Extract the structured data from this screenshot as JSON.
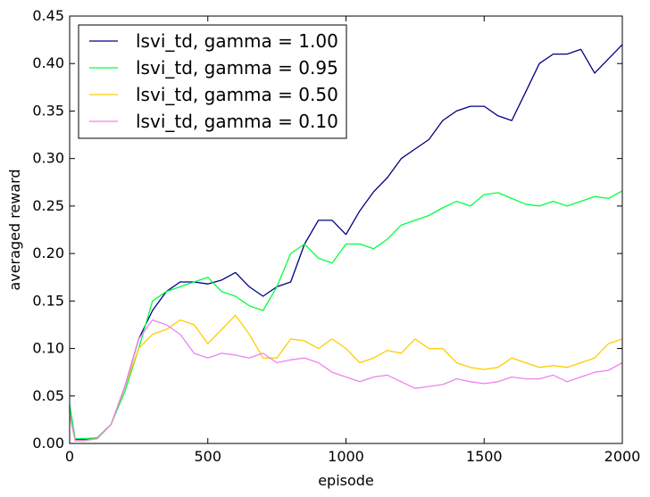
{
  "chart_data": {
    "type": "line",
    "title": "",
    "xlabel": "episode",
    "ylabel": "averaged reward",
    "xlim": [
      0,
      2000
    ],
    "ylim": [
      0.0,
      0.45
    ],
    "xticks": [
      "0",
      "500",
      "1000",
      "1500",
      "2000"
    ],
    "yticks": [
      "0.00",
      "0.05",
      "0.10",
      "0.15",
      "0.20",
      "0.25",
      "0.30",
      "0.35",
      "0.40",
      "0.45"
    ],
    "grid": false,
    "legend_position": "top-left",
    "series": [
      {
        "name": "lsvi_td, gamma = 1.00",
        "color": "#000080",
        "x": [
          0,
          20,
          50,
          100,
          150,
          200,
          250,
          300,
          350,
          400,
          450,
          500,
          550,
          600,
          650,
          700,
          750,
          800,
          850,
          900,
          950,
          1000,
          1050,
          1100,
          1150,
          1200,
          1250,
          1300,
          1350,
          1400,
          1450,
          1500,
          1550,
          1600,
          1650,
          1700,
          1750,
          1800,
          1850,
          1900,
          1950,
          2000
        ],
        "y": [
          0.04,
          0.004,
          0.004,
          0.006,
          0.02,
          0.06,
          0.11,
          0.14,
          0.16,
          0.17,
          0.17,
          0.168,
          0.172,
          0.18,
          0.165,
          0.155,
          0.165,
          0.17,
          0.21,
          0.235,
          0.235,
          0.22,
          0.245,
          0.265,
          0.28,
          0.3,
          0.31,
          0.32,
          0.34,
          0.35,
          0.355,
          0.355,
          0.345,
          0.34,
          0.37,
          0.4,
          0.41,
          0.41,
          0.415,
          0.39,
          0.405,
          0.42
        ]
      },
      {
        "name": "lsvi_td, gamma = 0.95",
        "color": "#00ff40",
        "x": [
          0,
          20,
          50,
          100,
          150,
          200,
          250,
          300,
          350,
          400,
          450,
          500,
          550,
          600,
          650,
          700,
          750,
          800,
          850,
          900,
          950,
          1000,
          1050,
          1100,
          1150,
          1200,
          1250,
          1300,
          1350,
          1400,
          1450,
          1500,
          1550,
          1600,
          1650,
          1700,
          1750,
          1800,
          1850,
          1900,
          1950,
          2000
        ],
        "y": [
          0.04,
          0.005,
          0.005,
          0.006,
          0.02,
          0.055,
          0.1,
          0.15,
          0.16,
          0.165,
          0.17,
          0.175,
          0.16,
          0.155,
          0.145,
          0.14,
          0.165,
          0.2,
          0.21,
          0.195,
          0.19,
          0.21,
          0.21,
          0.205,
          0.215,
          0.23,
          0.235,
          0.24,
          0.248,
          0.255,
          0.25,
          0.262,
          0.264,
          0.258,
          0.252,
          0.25,
          0.255,
          0.25,
          0.255,
          0.26,
          0.258,
          0.266
        ]
      },
      {
        "name": "lsvi_td, gamma = 0.50",
        "color": "#ffcc00",
        "x": [
          0,
          20,
          50,
          100,
          150,
          200,
          250,
          300,
          350,
          400,
          450,
          500,
          550,
          600,
          650,
          700,
          750,
          800,
          850,
          900,
          950,
          1000,
          1050,
          1100,
          1150,
          1200,
          1250,
          1300,
          1350,
          1400,
          1450,
          1500,
          1550,
          1600,
          1650,
          1700,
          1750,
          1800,
          1850,
          1900,
          1950,
          2000
        ],
        "y": [
          0.03,
          0.003,
          0.003,
          0.005,
          0.02,
          0.06,
          0.1,
          0.115,
          0.12,
          0.13,
          0.125,
          0.105,
          0.12,
          0.135,
          0.115,
          0.09,
          0.09,
          0.11,
          0.108,
          0.1,
          0.11,
          0.1,
          0.085,
          0.09,
          0.098,
          0.095,
          0.11,
          0.1,
          0.1,
          0.085,
          0.08,
          0.078,
          0.08,
          0.09,
          0.085,
          0.08,
          0.082,
          0.08,
          0.085,
          0.09,
          0.105,
          0.11
        ]
      },
      {
        "name": "lsvi_td, gamma = 0.10",
        "color": "#ee82ee",
        "x": [
          0,
          20,
          50,
          100,
          150,
          200,
          250,
          300,
          350,
          400,
          450,
          500,
          550,
          600,
          650,
          700,
          750,
          800,
          850,
          900,
          950,
          1000,
          1050,
          1100,
          1150,
          1200,
          1250,
          1300,
          1350,
          1400,
          1450,
          1500,
          1550,
          1600,
          1650,
          1700,
          1750,
          1800,
          1850,
          1900,
          1950,
          2000
        ],
        "y": [
          0.03,
          0.003,
          0.003,
          0.005,
          0.02,
          0.06,
          0.11,
          0.13,
          0.125,
          0.115,
          0.095,
          0.09,
          0.095,
          0.093,
          0.09,
          0.095,
          0.085,
          0.088,
          0.09,
          0.085,
          0.075,
          0.07,
          0.065,
          0.07,
          0.072,
          0.065,
          0.058,
          0.06,
          0.062,
          0.068,
          0.065,
          0.063,
          0.065,
          0.07,
          0.068,
          0.068,
          0.072,
          0.065,
          0.07,
          0.075,
          0.077,
          0.085
        ]
      }
    ]
  }
}
